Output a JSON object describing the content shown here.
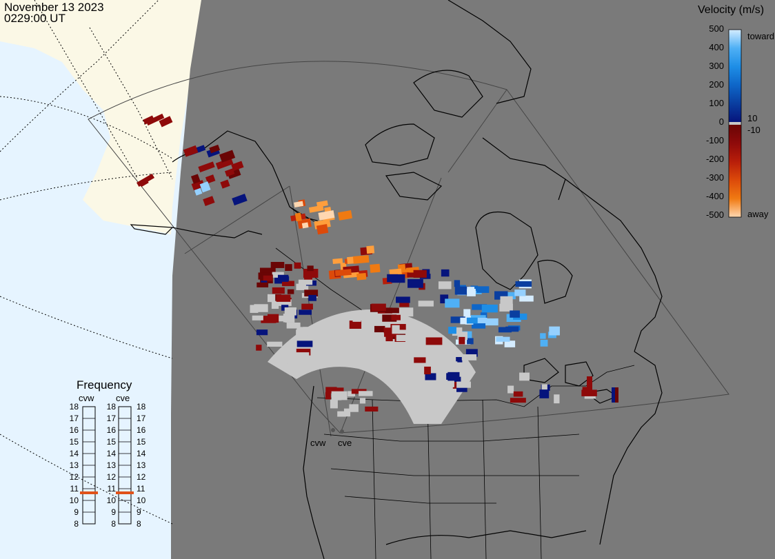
{
  "header": {
    "date": "November 13 2023",
    "time": "0229:00 UT"
  },
  "colorbar": {
    "title": "Velocity (m/s)",
    "ticks": [
      "500",
      "400",
      "300",
      "200",
      "100",
      "0",
      "-100",
      "-200",
      "-300",
      "-400",
      "-500"
    ],
    "toward_label": "toward",
    "away_label": "away",
    "thresh_pos": "10",
    "thresh_neg": "-10",
    "colors": {
      "toward": [
        "#d5ecff",
        "#95d0ff",
        "#4fb0f5",
        "#1e8ee6",
        "#0e66c8",
        "#0a3ea0",
        "#06147c"
      ],
      "away": [
        "#6a0505",
        "#8e0a0a",
        "#b81e0a",
        "#dc4a0a",
        "#f07a12",
        "#ff9e3c",
        "#ffd7b0"
      ],
      "ground": "#c8c8c8"
    }
  },
  "frequency": {
    "title": "Frequency",
    "radars": [
      {
        "id": "cvw",
        "freq_mhz": 10.8
      },
      {
        "id": "cve",
        "freq_mhz": 10.8
      }
    ],
    "scale": [
      "18",
      "17",
      "16",
      "15",
      "14",
      "13",
      "12",
      "11",
      "10",
      "9",
      "8"
    ]
  },
  "map": {
    "ocean_color": "#e6f4ff",
    "land_color": "#fbf8e6",
    "night_color": "#7a7a7a",
    "site_labels": [
      "cvw",
      "cve"
    ]
  }
}
